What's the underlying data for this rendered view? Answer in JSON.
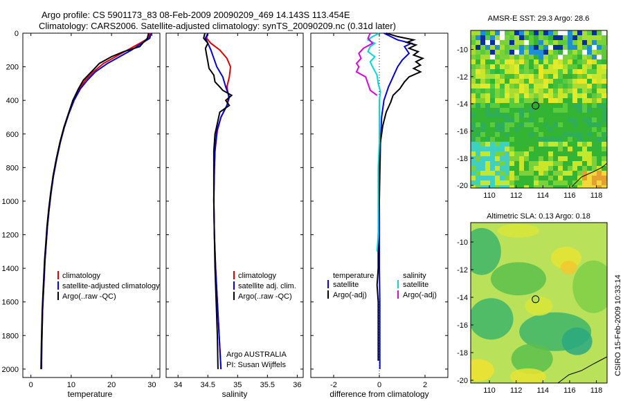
{
  "figure": {
    "title_line1": "Argo profile: CS 5901173_83 08-Feb-2009 20090209_469 14.143S 113.454E",
    "title_line2": "Climatology: CARS2006. Satellite-adjusted climatology: synTS_20090209.nc (0.31d later)",
    "footer": "CSIRO 15-Feb-2009 10:33:14"
  },
  "chart_data": [
    {
      "id": "temperature",
      "type": "line",
      "xlabel": "temperature",
      "xlim": [
        -2,
        32
      ],
      "xticks": [
        0,
        10,
        20,
        30
      ],
      "ylim": [
        2050,
        0
      ],
      "yticks": [
        0,
        200,
        400,
        600,
        800,
        1000,
        1200,
        1400,
        1600,
        1800,
        2000
      ],
      "legend": [
        "climatology",
        "satellite-adjusted climatology",
        "Argo(..raw -QC)"
      ],
      "series": [
        {
          "name": "climatology",
          "color": "#e00000",
          "points": [
            [
              29.6,
              0
            ],
            [
              29.2,
              30
            ],
            [
              27,
              60
            ],
            [
              24,
              100
            ],
            [
              21,
              140
            ],
            [
              18,
              180
            ],
            [
              15.5,
              230
            ],
            [
              13.5,
              280
            ],
            [
              12,
              330
            ],
            [
              10.5,
              400
            ],
            [
              9.3,
              480
            ],
            [
              8.2,
              560
            ],
            [
              7.2,
              650
            ],
            [
              6.3,
              750
            ],
            [
              5.5,
              850
            ],
            [
              5,
              950
            ],
            [
              4.5,
              1050
            ],
            [
              4.1,
              1150
            ],
            [
              3.8,
              1250
            ],
            [
              3.5,
              1350
            ],
            [
              3.3,
              1450
            ],
            [
              3.1,
              1550
            ],
            [
              2.9,
              1650
            ],
            [
              2.8,
              1750
            ],
            [
              2.7,
              1850
            ],
            [
              2.6,
              2000
            ]
          ]
        },
        {
          "name": "satellite",
          "color": "#0000e0",
          "points": [
            [
              29.8,
              0
            ],
            [
              29.5,
              30
            ],
            [
              27.5,
              60
            ],
            [
              25,
              100
            ],
            [
              22,
              140
            ],
            [
              19,
              180
            ],
            [
              16,
              230
            ],
            [
              14,
              280
            ],
            [
              12.3,
              330
            ],
            [
              10.7,
              400
            ],
            [
              9.4,
              480
            ],
            [
              8.3,
              560
            ],
            [
              7.3,
              650
            ],
            [
              6.4,
              750
            ],
            [
              5.6,
              850
            ],
            [
              5,
              950
            ],
            [
              4.5,
              1050
            ],
            [
              4.1,
              1150
            ],
            [
              3.8,
              1250
            ],
            [
              3.5,
              1350
            ],
            [
              3.3,
              1450
            ],
            [
              3.1,
              1550
            ],
            [
              2.9,
              1650
            ],
            [
              2.8,
              1750
            ],
            [
              2.7,
              1850
            ],
            [
              2.6,
              2000
            ]
          ]
        },
        {
          "name": "Argo",
          "color": "#000000",
          "points": [
            [
              29.2,
              0
            ],
            [
              28.9,
              30
            ],
            [
              27.9,
              55
            ],
            [
              27,
              80
            ],
            [
              23,
              110
            ],
            [
              20,
              140
            ],
            [
              17,
              180
            ],
            [
              15,
              230
            ],
            [
              13,
              280
            ],
            [
              11.8,
              330
            ],
            [
              10.4,
              400
            ],
            [
              9.3,
              480
            ],
            [
              8.2,
              560
            ],
            [
              7.2,
              650
            ],
            [
              6.3,
              750
            ],
            [
              5.5,
              850
            ],
            [
              4.9,
              950
            ],
            [
              4.4,
              1050
            ],
            [
              4,
              1150
            ],
            [
              3.7,
              1250
            ],
            [
              3.4,
              1350
            ],
            [
              3.2,
              1450
            ],
            [
              3,
              1550
            ],
            [
              2.8,
              1650
            ],
            [
              2.7,
              1750
            ],
            [
              2.6,
              1850
            ],
            [
              2.5,
              2000
            ]
          ]
        }
      ]
    },
    {
      "id": "salinity",
      "type": "line",
      "xlabel": "salinity",
      "xlim": [
        33.8,
        36.1
      ],
      "xticks": [
        34,
        34.5,
        35,
        35.5,
        36
      ],
      "xticklabels": [
        "34",
        "34.5",
        "35",
        "35.5",
        "36"
      ],
      "ylim": [
        2050,
        0
      ],
      "legend": [
        "climatology",
        "satellite adj. clim.",
        "Argo(..raw -QC)"
      ],
      "annotation": [
        "Argo AUSTRALIA",
        "PI: Susan Wijffels"
      ],
      "series": [
        {
          "name": "climatology",
          "color": "#e00000",
          "points": [
            [
              34.5,
              0
            ],
            [
              34.48,
              30
            ],
            [
              34.55,
              60
            ],
            [
              34.7,
              100
            ],
            [
              34.82,
              150
            ],
            [
              34.88,
              200
            ],
            [
              34.86,
              260
            ],
            [
              34.82,
              320
            ],
            [
              34.85,
              380
            ],
            [
              34.82,
              430
            ],
            [
              34.72,
              500
            ],
            [
              34.66,
              580
            ],
            [
              34.62,
              700
            ],
            [
              34.61,
              800
            ],
            [
              34.6,
              1000
            ],
            [
              34.61,
              1200
            ],
            [
              34.63,
              1400
            ],
            [
              34.66,
              1600
            ],
            [
              34.69,
              1800
            ],
            [
              34.72,
              2000
            ]
          ]
        },
        {
          "name": "satellite",
          "color": "#0000e0",
          "points": [
            [
              34.5,
              0
            ],
            [
              34.46,
              30
            ],
            [
              34.5,
              60
            ],
            [
              34.55,
              100
            ],
            [
              34.6,
              150
            ],
            [
              34.65,
              200
            ],
            [
              34.75,
              260
            ],
            [
              34.8,
              320
            ],
            [
              34.86,
              380
            ],
            [
              34.82,
              430
            ],
            [
              34.72,
              500
            ],
            [
              34.65,
              580
            ],
            [
              34.62,
              700
            ],
            [
              34.61,
              800
            ],
            [
              34.6,
              1000
            ],
            [
              34.61,
              1200
            ],
            [
              34.63,
              1400
            ],
            [
              34.66,
              1600
            ],
            [
              34.69,
              1800
            ],
            [
              34.72,
              2000
            ]
          ]
        },
        {
          "name": "Argo",
          "color": "#000000",
          "points": [
            [
              34.45,
              0
            ],
            [
              34.43,
              30
            ],
            [
              34.5,
              60
            ],
            [
              34.46,
              90
            ],
            [
              34.48,
              130
            ],
            [
              34.5,
              170
            ],
            [
              34.52,
              210
            ],
            [
              34.6,
              250
            ],
            [
              34.62,
              290
            ],
            [
              34.7,
              320
            ],
            [
              34.75,
              340
            ],
            [
              34.9,
              370
            ],
            [
              34.8,
              400
            ],
            [
              34.86,
              430
            ],
            [
              34.7,
              470
            ],
            [
              34.67,
              520
            ],
            [
              34.62,
              600
            ],
            [
              34.6,
              700
            ],
            [
              34.6,
              850
            ],
            [
              34.6,
              1000
            ],
            [
              34.61,
              1200
            ],
            [
              34.62,
              1400
            ],
            [
              34.64,
              1600
            ],
            [
              34.66,
              1800
            ],
            [
              34.67,
              2000
            ]
          ]
        }
      ]
    },
    {
      "id": "difference",
      "type": "line",
      "xlabel": "difference from climatology",
      "xlim": [
        -3,
        3
      ],
      "xticks": [
        -2,
        0,
        2
      ],
      "ylim": [
        2050,
        0
      ],
      "legend_left_header": "temperature",
      "legend_right_header": "salinity",
      "legend_left": [
        "satellite",
        "Argo(-adj)"
      ],
      "legend_right": [
        "satellite",
        "Argo(-adj)"
      ],
      "series": [
        {
          "name": "temp satellite",
          "color": "#0000e0",
          "points": [
            [
              0.2,
              0
            ],
            [
              0.5,
              20
            ],
            [
              0.8,
              40
            ],
            [
              1.4,
              60
            ],
            [
              1.1,
              80
            ],
            [
              1.3,
              120
            ],
            [
              1.0,
              160
            ],
            [
              0.8,
              200
            ],
            [
              0.6,
              260
            ],
            [
              0.4,
              320
            ],
            [
              0.2,
              400
            ],
            [
              0.1,
              500
            ],
            [
              0.05,
              650
            ],
            [
              0.03,
              800
            ],
            [
              0,
              1000
            ],
            [
              0,
              1200
            ],
            [
              0,
              1400
            ],
            [
              0.02,
              1600
            ],
            [
              0.02,
              1800
            ],
            [
              0.02,
              2000
            ]
          ]
        },
        {
          "name": "temp Argo",
          "color": "#000000",
          "points": [
            [
              0.3,
              0
            ],
            [
              0.8,
              20
            ],
            [
              1.5,
              40
            ],
            [
              1.2,
              55
            ],
            [
              1.6,
              70
            ],
            [
              1.3,
              90
            ],
            [
              1.7,
              110
            ],
            [
              1.5,
              130
            ],
            [
              1.9,
              150
            ],
            [
              1.6,
              170
            ],
            [
              1.8,
              190
            ],
            [
              1.5,
              210
            ],
            [
              1.8,
              230
            ],
            [
              1.3,
              260
            ],
            [
              1.1,
              290
            ],
            [
              0.9,
              330
            ],
            [
              0.6,
              370
            ],
            [
              0.5,
              410
            ],
            [
              0.3,
              470
            ],
            [
              0.15,
              550
            ],
            [
              0.05,
              650
            ],
            [
              0,
              800
            ],
            [
              0,
              1000
            ],
            [
              -0.05,
              1200
            ],
            [
              -0.05,
              1400
            ],
            [
              -0.1,
              1500
            ],
            [
              -0.05,
              1600
            ],
            [
              -0.05,
              1800
            ],
            [
              -0.05,
              1950
            ]
          ]
        },
        {
          "name": "sal satellite",
          "color": "#00d8d8",
          "points": [
            [
              0,
              0
            ],
            [
              -0.3,
              20
            ],
            [
              -0.5,
              40
            ],
            [
              -0.2,
              60
            ],
            [
              -0.4,
              80
            ],
            [
              -0.5,
              110
            ],
            [
              -0.2,
              140
            ],
            [
              -0.4,
              170
            ],
            [
              -0.3,
              200
            ],
            [
              -0.1,
              250
            ],
            [
              -0.05,
              300
            ],
            [
              0.05,
              350
            ],
            [
              0,
              400
            ],
            [
              0,
              450
            ],
            [
              0,
              500
            ],
            [
              0,
              550
            ],
            [
              0,
              650
            ],
            [
              -0.05,
              800
            ],
            [
              -0.05,
              1000
            ],
            [
              -0.05,
              1200
            ],
            [
              -0.1,
              1300
            ]
          ]
        },
        {
          "name": "sal Argo",
          "color": "#e000e0",
          "points": [
            [
              -0.4,
              0
            ],
            [
              -0.5,
              30
            ],
            [
              -0.3,
              60
            ],
            [
              -0.7,
              90
            ],
            [
              -0.9,
              120
            ],
            [
              -0.8,
              150
            ],
            [
              -1.0,
              180
            ],
            [
              -0.9,
              200
            ],
            [
              -1.0,
              230
            ],
            [
              -0.6,
              260
            ],
            [
              -0.5,
              300
            ],
            [
              -0.4,
              340
            ],
            [
              -0.1,
              370
            ]
          ]
        }
      ]
    },
    {
      "id": "sst_map",
      "type": "heatmap",
      "title": "AMSR-E SST: 29.3 Argo: 28.6",
      "xticks": [
        110,
        112,
        114,
        116,
        118
      ],
      "yticks": [
        -10,
        -12,
        -14,
        -16,
        -18,
        -20
      ],
      "marker": [
        113.45,
        -14.14
      ]
    },
    {
      "id": "sla_map",
      "type": "heatmap",
      "title": "Altimetric SLA: 0.13 Argo: 0.18",
      "xticks": [
        110,
        112,
        114,
        116,
        118
      ],
      "yticks": [
        -10,
        -12,
        -14,
        -16,
        -18,
        -20
      ],
      "marker": [
        113.45,
        -14.14
      ]
    }
  ]
}
